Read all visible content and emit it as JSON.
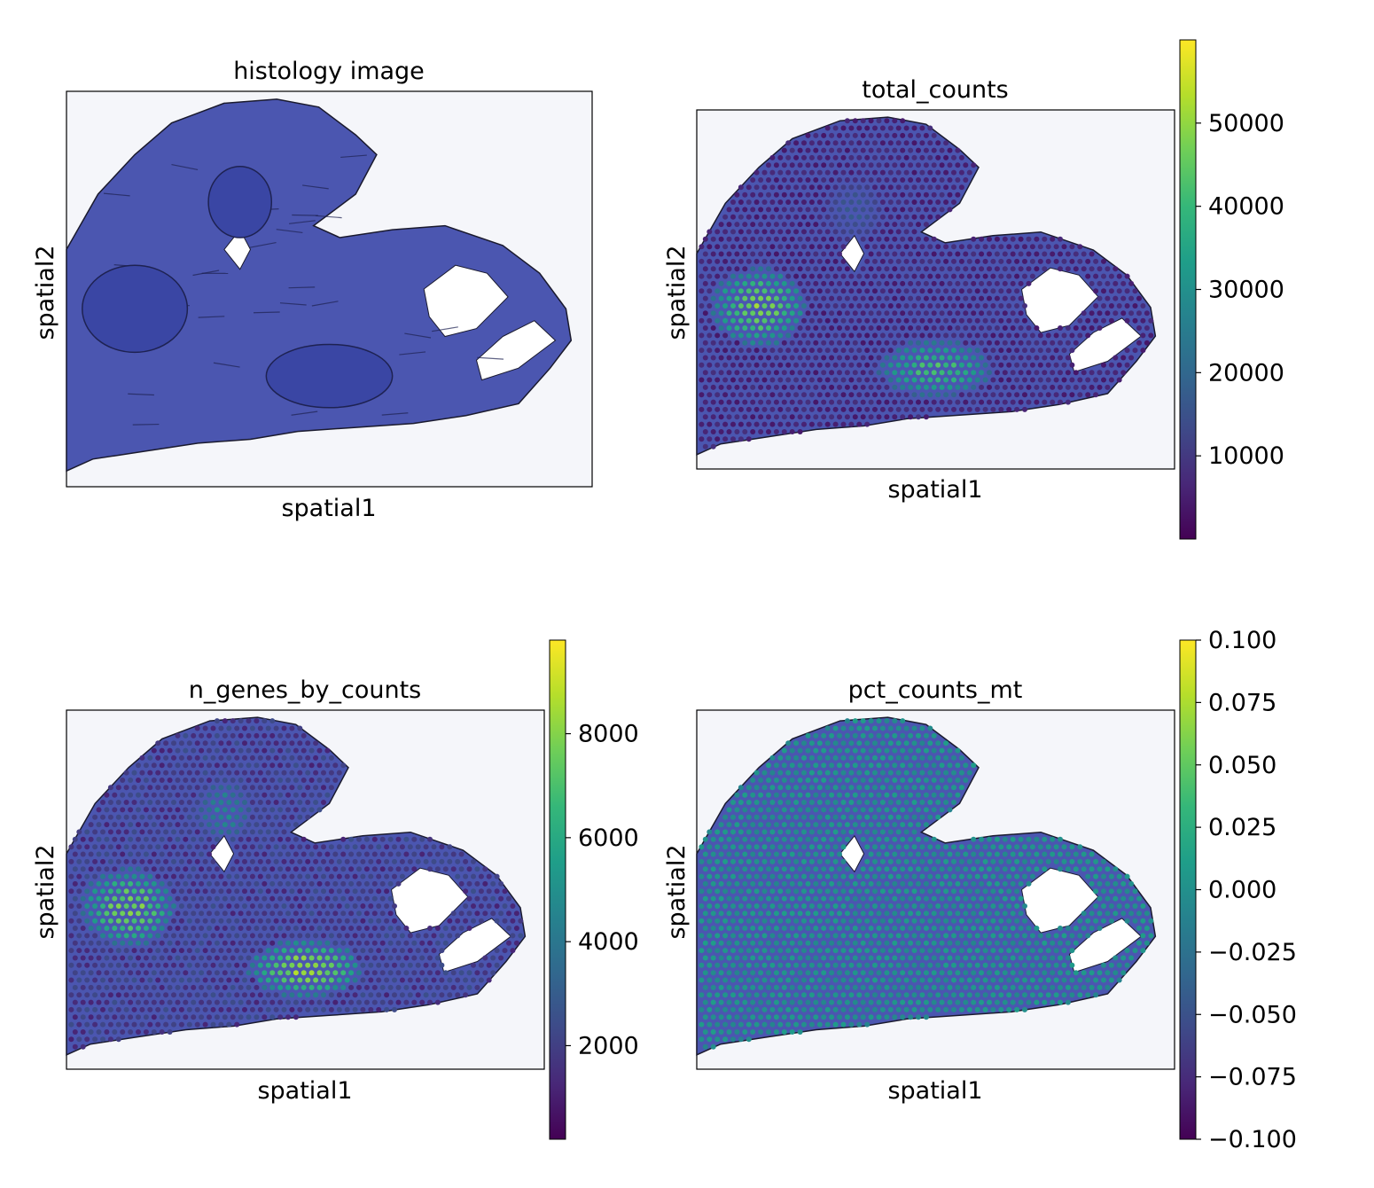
{
  "colors": {
    "viridis": [
      "#440154",
      "#482878",
      "#3e4a89",
      "#31688e",
      "#26828e",
      "#1f9e89",
      "#35b779",
      "#6ece58",
      "#b5de2b",
      "#fde725"
    ],
    "tissue": "#4b56b0",
    "tissue_dark": "#1e2252",
    "background": "#f5f6fa",
    "outline": "#1a1a2e"
  },
  "chart_data": [
    {
      "type": "scatter",
      "panel": "histology",
      "title": "histology image",
      "xlabel": "spatial1",
      "ylabel": "spatial2",
      "colorbar": null
    },
    {
      "type": "scatter",
      "panel": "total_counts",
      "title": "total_counts",
      "xlabel": "spatial1",
      "ylabel": "spatial2",
      "colorbar": {
        "min": 0,
        "max": 60000,
        "ticks": [
          10000,
          20000,
          30000,
          40000,
          50000
        ],
        "tick_labels": [
          "10000",
          "20000",
          "30000",
          "40000",
          "50000"
        ]
      },
      "hotspots": [
        {
          "region": "left-lobe",
          "value": 52000
        },
        {
          "region": "lower-bud",
          "value": 45000
        },
        {
          "region": "upper-cavity",
          "value": 18000
        }
      ],
      "baseline": 6000
    },
    {
      "type": "scatter",
      "panel": "n_genes_by_counts",
      "title": "n_genes_by_counts",
      "xlabel": "spatial1",
      "ylabel": "spatial2",
      "colorbar": {
        "min": 200,
        "max": 9800,
        "ticks": [
          2000,
          4000,
          6000,
          8000
        ],
        "tick_labels": [
          "2000",
          "4000",
          "6000",
          "8000"
        ]
      },
      "hotspots": [
        {
          "region": "left-lobe",
          "value": 8500
        },
        {
          "region": "lower-bud",
          "value": 9000
        },
        {
          "region": "upper-cavity",
          "value": 5200
        }
      ],
      "baseline": 1800
    },
    {
      "type": "scatter",
      "panel": "pct_counts_mt",
      "title": "pct_counts_mt",
      "xlabel": "spatial1",
      "ylabel": "spatial2",
      "colorbar": {
        "min": -0.1,
        "max": 0.1,
        "ticks": [
          -0.1,
          -0.075,
          -0.05,
          -0.025,
          0.0,
          0.025,
          0.05,
          0.075,
          0.1
        ],
        "tick_labels": [
          "−0.100",
          "−0.075",
          "−0.050",
          "−0.025",
          "0.000",
          "0.025",
          "0.050",
          "0.075",
          "0.100"
        ]
      },
      "uniform_value": 0.0
    }
  ]
}
